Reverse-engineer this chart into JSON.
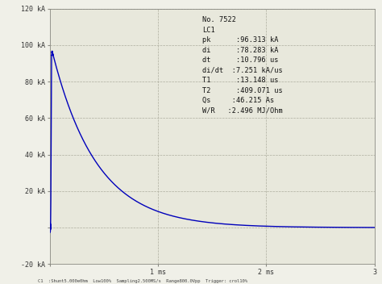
{
  "bg_color": "#f0f0e8",
  "plot_bg_color": "#e8e8dc",
  "grid_color": "#a8a898",
  "waveform_color": "#0000bb",
  "ylim": [
    -20,
    120
  ],
  "xlim": [
    0,
    3
  ],
  "yticks": [
    -20,
    0,
    20,
    40,
    60,
    80,
    100,
    120
  ],
  "ytick_labels": [
    "-20 kA",
    "",
    "20 kA",
    "40 kA",
    "60 kA",
    "80 kA",
    "100 kA",
    "120 kA"
  ],
  "xticks": [
    0,
    1,
    2,
    3
  ],
  "xtick_labels": [
    "",
    "1 ms",
    "2 ms",
    "3"
  ],
  "vlines": [
    1,
    2
  ],
  "peak_kA": 96.313,
  "rise_time_us": 13.148,
  "decay_time_us": 409.071,
  "annotation_lines": [
    "No. 7522",
    "LC1",
    "pk      :96.313 kA",
    "di      :78.283 kA",
    "dt      :10.796 us",
    "di/dt  :7.251 kA/us",
    "T1      :13.148 us",
    "T2      :409.071 us",
    "Qs     :46.215 As",
    "W/R   :2.496 MJ/Ohm"
  ],
  "footer_text": "C1  :Shunt5.000e0hm  Low100%  Sampling2.500MS/s  Range800.0Vpp  Trigger: crol10%",
  "ann_x": 0.47,
  "ann_y": 0.97
}
